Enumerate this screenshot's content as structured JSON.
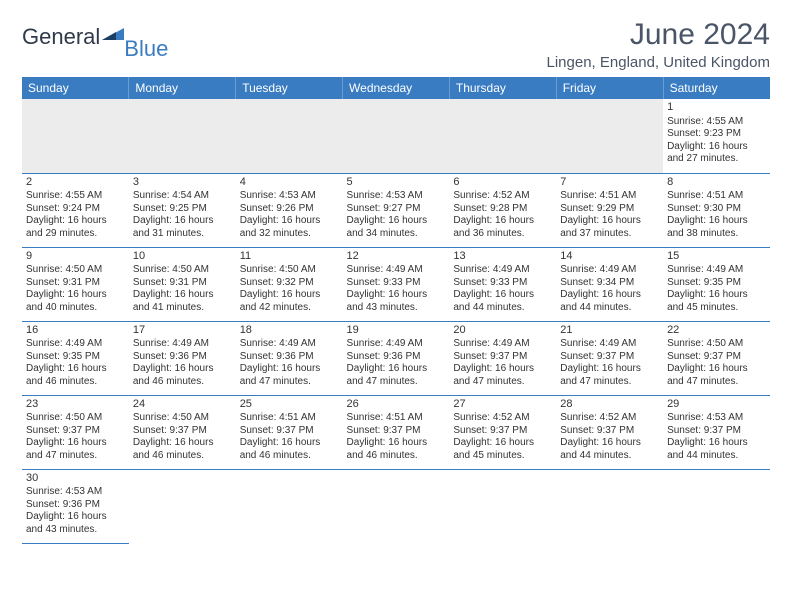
{
  "logo": {
    "text1": "General",
    "text2": "Blue"
  },
  "title": "June 2024",
  "location": "Lingen, England, United Kingdom",
  "colors": {
    "header_bg": "#3a7cc2",
    "header_text": "#ffffff",
    "border": "#3a7cc2",
    "empty_bg": "#ececec",
    "text": "#333333",
    "logo_dark": "#303a4a",
    "logo_blue": "#3a7cc2"
  },
  "day_headers": [
    "Sunday",
    "Monday",
    "Tuesday",
    "Wednesday",
    "Thursday",
    "Friday",
    "Saturday"
  ],
  "weeks": [
    [
      null,
      null,
      null,
      null,
      null,
      null,
      {
        "d": "1",
        "sr": "4:55 AM",
        "ss": "9:23 PM",
        "dl": "16 hours and 27 minutes."
      }
    ],
    [
      {
        "d": "2",
        "sr": "4:55 AM",
        "ss": "9:24 PM",
        "dl": "16 hours and 29 minutes."
      },
      {
        "d": "3",
        "sr": "4:54 AM",
        "ss": "9:25 PM",
        "dl": "16 hours and 31 minutes."
      },
      {
        "d": "4",
        "sr": "4:53 AM",
        "ss": "9:26 PM",
        "dl": "16 hours and 32 minutes."
      },
      {
        "d": "5",
        "sr": "4:53 AM",
        "ss": "9:27 PM",
        "dl": "16 hours and 34 minutes."
      },
      {
        "d": "6",
        "sr": "4:52 AM",
        "ss": "9:28 PM",
        "dl": "16 hours and 36 minutes."
      },
      {
        "d": "7",
        "sr": "4:51 AM",
        "ss": "9:29 PM",
        "dl": "16 hours and 37 minutes."
      },
      {
        "d": "8",
        "sr": "4:51 AM",
        "ss": "9:30 PM",
        "dl": "16 hours and 38 minutes."
      }
    ],
    [
      {
        "d": "9",
        "sr": "4:50 AM",
        "ss": "9:31 PM",
        "dl": "16 hours and 40 minutes."
      },
      {
        "d": "10",
        "sr": "4:50 AM",
        "ss": "9:31 PM",
        "dl": "16 hours and 41 minutes."
      },
      {
        "d": "11",
        "sr": "4:50 AM",
        "ss": "9:32 PM",
        "dl": "16 hours and 42 minutes."
      },
      {
        "d": "12",
        "sr": "4:49 AM",
        "ss": "9:33 PM",
        "dl": "16 hours and 43 minutes."
      },
      {
        "d": "13",
        "sr": "4:49 AM",
        "ss": "9:33 PM",
        "dl": "16 hours and 44 minutes."
      },
      {
        "d": "14",
        "sr": "4:49 AM",
        "ss": "9:34 PM",
        "dl": "16 hours and 44 minutes."
      },
      {
        "d": "15",
        "sr": "4:49 AM",
        "ss": "9:35 PM",
        "dl": "16 hours and 45 minutes."
      }
    ],
    [
      {
        "d": "16",
        "sr": "4:49 AM",
        "ss": "9:35 PM",
        "dl": "16 hours and 46 minutes."
      },
      {
        "d": "17",
        "sr": "4:49 AM",
        "ss": "9:36 PM",
        "dl": "16 hours and 46 minutes."
      },
      {
        "d": "18",
        "sr": "4:49 AM",
        "ss": "9:36 PM",
        "dl": "16 hours and 47 minutes."
      },
      {
        "d": "19",
        "sr": "4:49 AM",
        "ss": "9:36 PM",
        "dl": "16 hours and 47 minutes."
      },
      {
        "d": "20",
        "sr": "4:49 AM",
        "ss": "9:37 PM",
        "dl": "16 hours and 47 minutes."
      },
      {
        "d": "21",
        "sr": "4:49 AM",
        "ss": "9:37 PM",
        "dl": "16 hours and 47 minutes."
      },
      {
        "d": "22",
        "sr": "4:50 AM",
        "ss": "9:37 PM",
        "dl": "16 hours and 47 minutes."
      }
    ],
    [
      {
        "d": "23",
        "sr": "4:50 AM",
        "ss": "9:37 PM",
        "dl": "16 hours and 47 minutes."
      },
      {
        "d": "24",
        "sr": "4:50 AM",
        "ss": "9:37 PM",
        "dl": "16 hours and 46 minutes."
      },
      {
        "d": "25",
        "sr": "4:51 AM",
        "ss": "9:37 PM",
        "dl": "16 hours and 46 minutes."
      },
      {
        "d": "26",
        "sr": "4:51 AM",
        "ss": "9:37 PM",
        "dl": "16 hours and 46 minutes."
      },
      {
        "d": "27",
        "sr": "4:52 AM",
        "ss": "9:37 PM",
        "dl": "16 hours and 45 minutes."
      },
      {
        "d": "28",
        "sr": "4:52 AM",
        "ss": "9:37 PM",
        "dl": "16 hours and 44 minutes."
      },
      {
        "d": "29",
        "sr": "4:53 AM",
        "ss": "9:37 PM",
        "dl": "16 hours and 44 minutes."
      }
    ],
    [
      {
        "d": "30",
        "sr": "4:53 AM",
        "ss": "9:36 PM",
        "dl": "16 hours and 43 minutes."
      },
      null,
      null,
      null,
      null,
      null,
      null
    ]
  ],
  "labels": {
    "sunrise": "Sunrise: ",
    "sunset": "Sunset: ",
    "daylight": "Daylight: "
  }
}
